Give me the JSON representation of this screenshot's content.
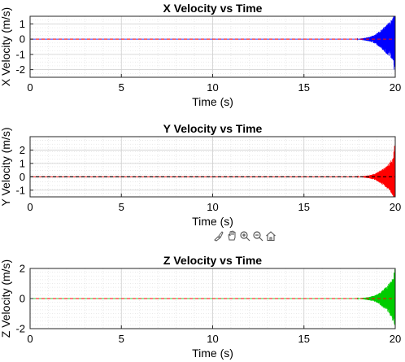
{
  "toolbar": {
    "icons": [
      "brush-icon",
      "pan-hand-icon",
      "zoom-in-icon",
      "zoom-out-icon",
      "home-icon"
    ]
  },
  "chart_data": [
    {
      "type": "line",
      "title": "X Velocity vs Time",
      "xlabel": "Time (s)",
      "ylabel": "X Velocity (m/s)",
      "xlim": [
        0,
        20
      ],
      "ylim": [
        -2.5,
        1.5
      ],
      "xticks": [
        "0",
        "5",
        "10",
        "15",
        "20"
      ],
      "yticks": [
        "1",
        "0",
        "-1",
        "-2"
      ],
      "grid": true,
      "series": [
        {
          "color": "#0000ff",
          "style": "solid",
          "x": [
            0,
            17.9,
            18.3,
            18.6,
            18.9,
            19.1,
            19.3,
            19.5,
            19.65,
            19.8,
            19.9,
            19.95,
            20
          ],
          "amplitude": [
            0,
            0,
            0.08,
            0.15,
            0.3,
            0.5,
            0.7,
            0.95,
            1.1,
            1.3,
            1.5,
            2.2,
            2.5
          ]
        },
        {
          "color": "#ff0000",
          "style": "dashed",
          "x": [
            0,
            20
          ],
          "y": [
            0,
            0
          ]
        }
      ]
    },
    {
      "type": "line",
      "title": "Y Velocity vs Time",
      "xlabel": "Time (s)",
      "ylabel": "Y Velocity (m/s)",
      "xlim": [
        0,
        20
      ],
      "ylim": [
        -1.5,
        3
      ],
      "xticks": [
        "0",
        "5",
        "10",
        "15",
        "20"
      ],
      "yticks": [
        "2",
        "1",
        "0",
        "-1"
      ],
      "grid": true,
      "series": [
        {
          "color": "#ff0000",
          "style": "solid",
          "x": [
            0,
            17.9,
            18.3,
            18.6,
            18.9,
            19.1,
            19.3,
            19.5,
            19.65,
            19.8,
            19.9,
            19.95,
            20
          ],
          "amplitude": [
            0,
            0,
            0.06,
            0.12,
            0.25,
            0.4,
            0.6,
            0.8,
            1.0,
            1.3,
            1.7,
            2.4,
            2.8
          ]
        },
        {
          "color": "#000000",
          "style": "dashed",
          "x": [
            0,
            20
          ],
          "y": [
            0,
            0
          ]
        }
      ]
    },
    {
      "type": "line",
      "title": "Z Velocity vs Time",
      "xlabel": "Time (s)",
      "ylabel": "Z Velocity (m/s)",
      "xlim": [
        0,
        20
      ],
      "ylim": [
        -2,
        2
      ],
      "xticks": [
        "0",
        "5",
        "10",
        "15",
        "20"
      ],
      "yticks": [
        "2",
        "0",
        "-2"
      ],
      "grid": true,
      "series": [
        {
          "color": "#00cc00",
          "style": "solid",
          "x": [
            0,
            17.9,
            18.3,
            18.6,
            18.9,
            19.1,
            19.3,
            19.5,
            19.65,
            19.8,
            19.9,
            19.95,
            20
          ],
          "amplitude": [
            0,
            0,
            0.06,
            0.12,
            0.22,
            0.35,
            0.55,
            0.8,
            1.0,
            1.3,
            1.6,
            1.9,
            2.0
          ]
        },
        {
          "color": "#ff0000",
          "style": "dashed",
          "x": [
            0,
            20
          ],
          "y": [
            0,
            0
          ]
        }
      ]
    }
  ]
}
